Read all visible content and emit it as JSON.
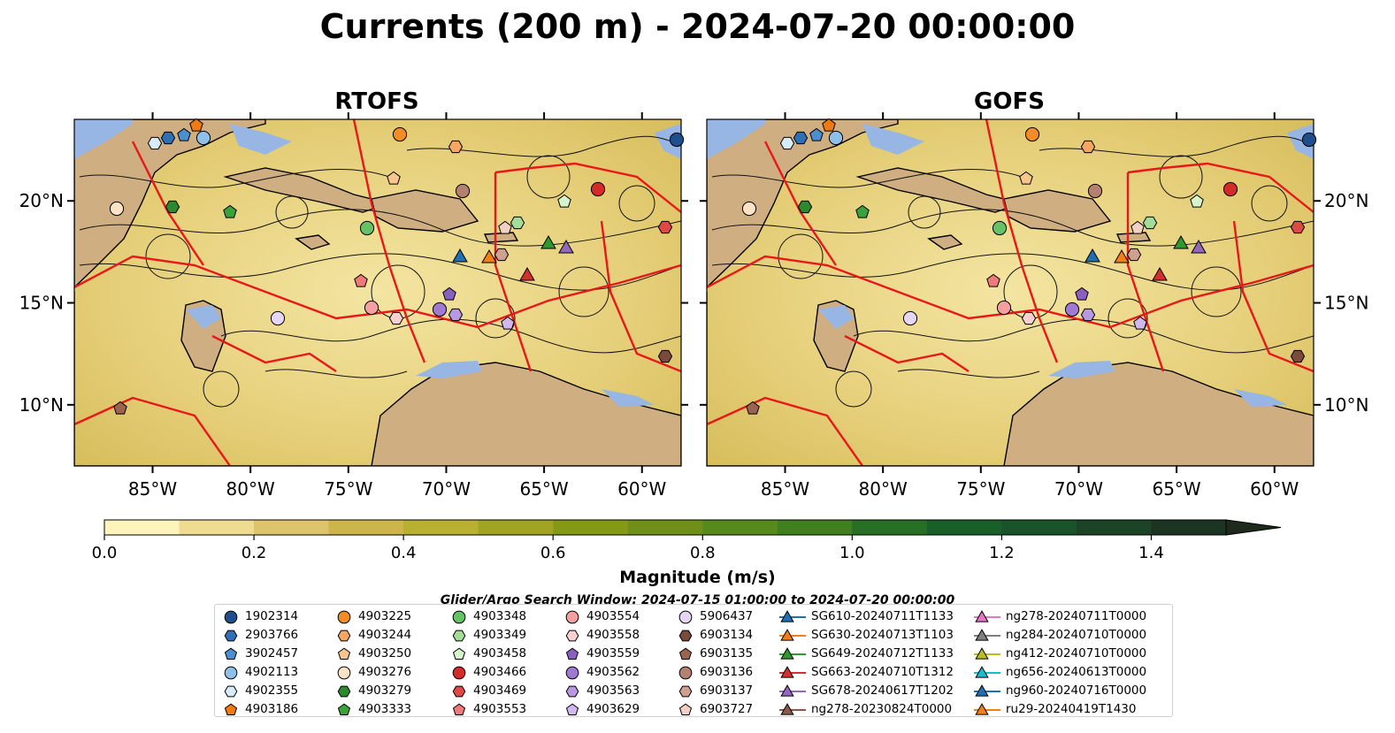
{
  "title": "Currents (200 m) - 2024-07-20 00:00:00",
  "panels": [
    {
      "title": "RTOFS"
    },
    {
      "title": "GOFS"
    }
  ],
  "axes": {
    "x_ticks": [
      "85°W",
      "80°W",
      "75°W",
      "70°W",
      "65°W",
      "60°W"
    ],
    "y_ticks": [
      "20°N",
      "15°N",
      "10°N"
    ],
    "lon_range": [
      -89,
      -58
    ],
    "lat_range": [
      7,
      24
    ]
  },
  "colorbar": {
    "label": "Magnitude (m/s)",
    "ticks": [
      "0.0",
      "0.2",
      "0.4",
      "0.6",
      "0.8",
      "1.0",
      "1.2",
      "1.4"
    ],
    "range": [
      0,
      1.5
    ],
    "extend": "max",
    "colors": [
      "#fdf4bc",
      "#efdc92",
      "#dcc36c",
      "#cdb54c",
      "#b9b031",
      "#a1a323",
      "#849a16",
      "#6f8f18",
      "#578a1d",
      "#3f7f20",
      "#266f25",
      "#186028",
      "#1a5229",
      "#1b4427",
      "#1c3523",
      "#1d2a1c"
    ]
  },
  "search_window": "Glider/Argo Search Window: 2024-07-15 01:00:00 to 2024-07-20 00:00:00",
  "legend": {
    "columns": [
      [
        {
          "label": "1902314",
          "marker": "circle",
          "color": "#1f4e8c"
        },
        {
          "label": "2903766",
          "marker": "hexagon",
          "color": "#2f6fb5"
        },
        {
          "label": "3902457",
          "marker": "pentagon",
          "color": "#4a8fd0"
        },
        {
          "label": "4902113",
          "marker": "circle",
          "color": "#8fc0ea"
        },
        {
          "label": "4902355",
          "marker": "hexagon",
          "color": "#d8ebfa"
        },
        {
          "label": "4903186",
          "marker": "pentagon",
          "color": "#f07a10"
        }
      ],
      [
        {
          "label": "4903225",
          "marker": "circle",
          "color": "#f28c28"
        },
        {
          "label": "4903244",
          "marker": "hexagon",
          "color": "#f5a660"
        },
        {
          "label": "4903250",
          "marker": "pentagon",
          "color": "#f8c58f"
        },
        {
          "label": "4903276",
          "marker": "circle",
          "color": "#fde3c6"
        },
        {
          "label": "4903279",
          "marker": "hexagon",
          "color": "#2c8a2c"
        },
        {
          "label": "4903333",
          "marker": "pentagon",
          "color": "#3aa23a"
        }
      ],
      [
        {
          "label": "4903348",
          "marker": "circle",
          "color": "#66c266"
        },
        {
          "label": "4903349",
          "marker": "hexagon",
          "color": "#a4dd9a"
        },
        {
          "label": "4903458",
          "marker": "pentagon",
          "color": "#d6f3cc"
        },
        {
          "label": "4903466",
          "marker": "circle",
          "color": "#d42a2a"
        },
        {
          "label": "4903469",
          "marker": "hexagon",
          "color": "#e04848"
        },
        {
          "label": "4903553",
          "marker": "pentagon",
          "color": "#ef7a7a"
        }
      ],
      [
        {
          "label": "4903554",
          "marker": "circle",
          "color": "#f4a0a0"
        },
        {
          "label": "4903558",
          "marker": "hexagon",
          "color": "#f9cfcf"
        },
        {
          "label": "4903559",
          "marker": "pentagon",
          "color": "#8a5fc0"
        },
        {
          "label": "4903562",
          "marker": "circle",
          "color": "#a07ad0"
        },
        {
          "label": "4903563",
          "marker": "hexagon",
          "color": "#b898e0"
        },
        {
          "label": "4903629",
          "marker": "pentagon",
          "color": "#d0b8ee"
        }
      ],
      [
        {
          "label": "5906437",
          "marker": "circle",
          "color": "#e6d6f6"
        },
        {
          "label": "6903134",
          "marker": "hexagon",
          "color": "#7a4a3a"
        },
        {
          "label": "6903135",
          "marker": "pentagon",
          "color": "#9a6450"
        },
        {
          "label": "6903136",
          "marker": "circle",
          "color": "#b48070"
        },
        {
          "label": "6903137",
          "marker": "hexagon",
          "color": "#cfa090"
        },
        {
          "label": "6903727",
          "marker": "pentagon",
          "color": "#f2d0c6"
        }
      ],
      [
        {
          "label": "SG610-20240711T1133",
          "marker": "triangle",
          "color": "#1f6fb5"
        },
        {
          "label": "SG630-20240713T1103",
          "marker": "triangle",
          "color": "#f57f17"
        },
        {
          "label": "SG649-20240712T1133",
          "marker": "triangle",
          "color": "#2e9a2e"
        },
        {
          "label": "SG663-20240710T1312",
          "marker": "triangle",
          "color": "#d32f2f"
        },
        {
          "label": "SG678-20240617T1202",
          "marker": "triangle",
          "color": "#9467bd"
        },
        {
          "label": "ng278-20230824T0000",
          "marker": "triangle",
          "color": "#8c564b"
        }
      ],
      [
        {
          "label": "ng278-20240711T0000",
          "marker": "triangle",
          "color": "#e377c2"
        },
        {
          "label": "ng284-20240710T0000",
          "marker": "triangle",
          "color": "#7f7f7f"
        },
        {
          "label": "ng412-20240710T0000",
          "marker": "triangle",
          "color": "#bcbd22"
        },
        {
          "label": "ng656-20240613T0000",
          "marker": "triangle",
          "color": "#17becf"
        },
        {
          "label": "ng960-20240716T0000",
          "marker": "triangle",
          "color": "#1f6fb5"
        },
        {
          "label": "ru29-20240419T1430",
          "marker": "triangle",
          "color": "#f57f17"
        }
      ]
    ]
  }
}
